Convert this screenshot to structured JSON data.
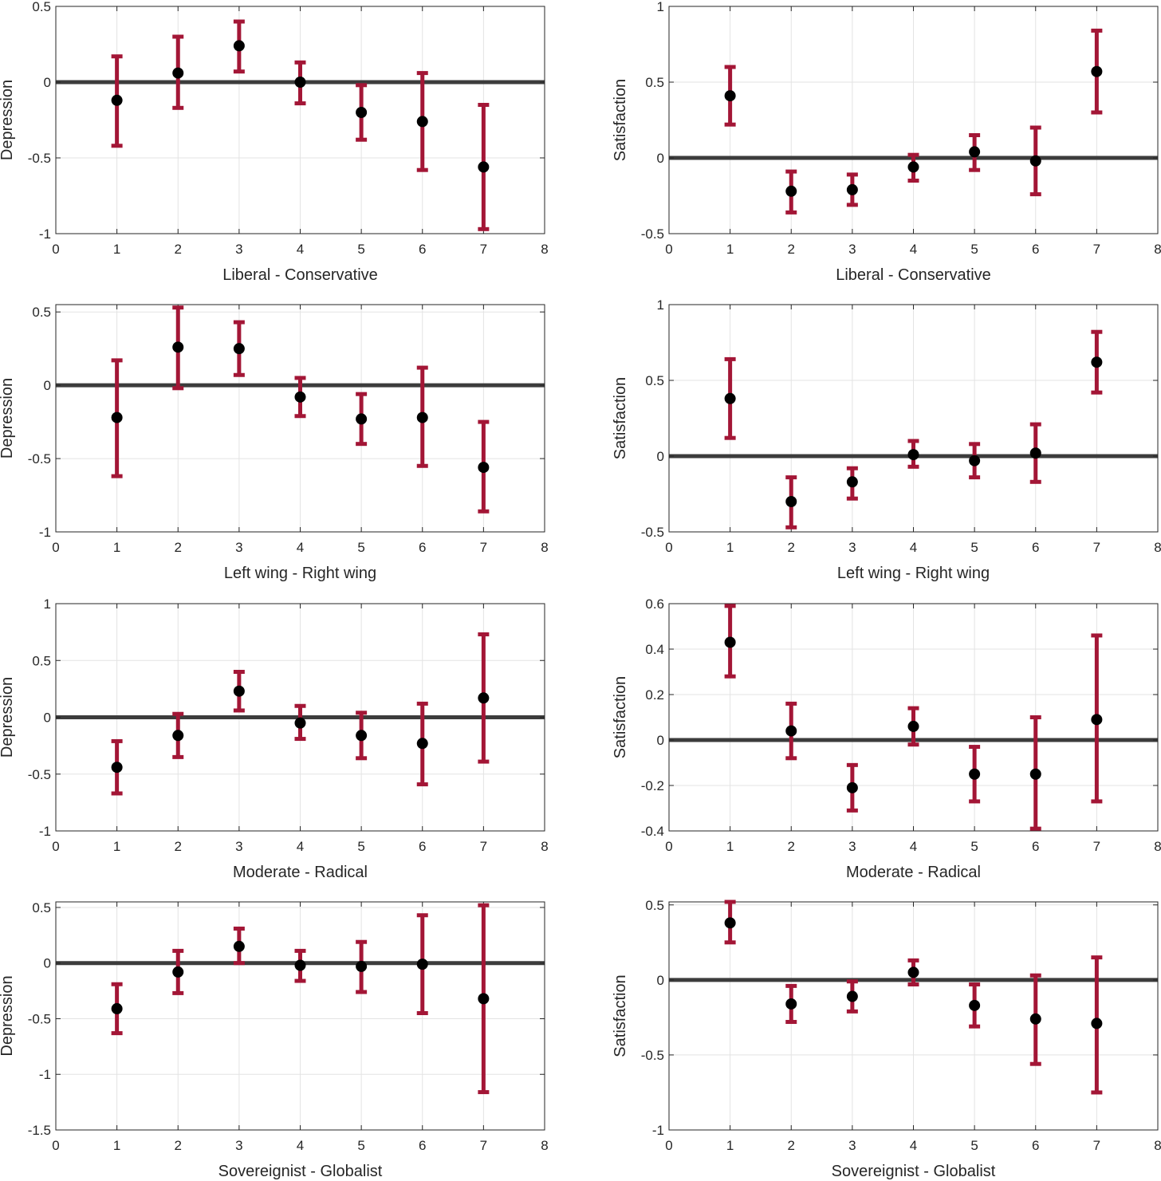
{
  "colors": {
    "error_bar": "#a31636",
    "point": "#000000",
    "zero_line": "#3c3c3c"
  },
  "chart_data": [
    {
      "type": "scatter",
      "xlabel": "Liberal - Conservative",
      "ylabel": "Depression",
      "xlim": [
        0,
        8
      ],
      "ylim": [
        -1,
        0.5
      ],
      "xticks": [
        0,
        1,
        2,
        3,
        4,
        5,
        6,
        7,
        8
      ],
      "yticks": [
        -1,
        -0.5,
        0,
        0.5
      ],
      "ytick_labels": [
        "-1",
        "-0.5",
        "0",
        "0.5"
      ],
      "grid": true,
      "reference_line_y": 0,
      "x": [
        1,
        2,
        3,
        4,
        5,
        6,
        7
      ],
      "y": [
        -0.12,
        0.06,
        0.24,
        0.0,
        -0.2,
        -0.26,
        -0.56
      ],
      "lower": [
        -0.42,
        -0.17,
        0.07,
        -0.14,
        -0.38,
        -0.58,
        -0.97
      ],
      "upper": [
        0.17,
        0.3,
        0.4,
        0.13,
        -0.02,
        0.06,
        -0.15
      ]
    },
    {
      "type": "scatter",
      "xlabel": "Liberal - Conservative",
      "ylabel": "Satisfaction",
      "xlim": [
        0,
        8
      ],
      "ylim": [
        -0.5,
        1
      ],
      "xticks": [
        0,
        1,
        2,
        3,
        4,
        5,
        6,
        7,
        8
      ],
      "yticks": [
        -0.5,
        0,
        0.5,
        1
      ],
      "ytick_labels": [
        "-0.5",
        "0",
        "0.5",
        "1"
      ],
      "grid": true,
      "reference_line_y": 0,
      "x": [
        1,
        2,
        3,
        4,
        5,
        6,
        7
      ],
      "y": [
        0.41,
        -0.22,
        -0.21,
        -0.06,
        0.04,
        -0.02,
        0.57
      ],
      "lower": [
        0.22,
        -0.36,
        -0.31,
        -0.15,
        -0.08,
        -0.24,
        0.3
      ],
      "upper": [
        0.6,
        -0.09,
        -0.11,
        0.02,
        0.15,
        0.2,
        0.84
      ]
    },
    {
      "type": "scatter",
      "xlabel": "Left wing - Right wing",
      "ylabel": "Depression",
      "xlim": [
        0,
        8
      ],
      "ylim": [
        -1,
        0.55
      ],
      "xticks": [
        0,
        1,
        2,
        3,
        4,
        5,
        6,
        7,
        8
      ],
      "yticks": [
        -1,
        -0.5,
        0,
        0.5
      ],
      "ytick_labels": [
        "-1",
        "-0.5",
        "0",
        "0.5"
      ],
      "grid": true,
      "reference_line_y": 0,
      "x": [
        1,
        2,
        3,
        4,
        5,
        6,
        7
      ],
      "y": [
        -0.22,
        0.26,
        0.25,
        -0.08,
        -0.23,
        -0.22,
        -0.56
      ],
      "lower": [
        -0.62,
        -0.02,
        0.07,
        -0.21,
        -0.4,
        -0.55,
        -0.86
      ],
      "upper": [
        0.17,
        0.53,
        0.43,
        0.05,
        -0.06,
        0.12,
        -0.25
      ]
    },
    {
      "type": "scatter",
      "xlabel": "Left wing - Right wing",
      "ylabel": "Satisfaction",
      "xlim": [
        0,
        8
      ],
      "ylim": [
        -0.5,
        1
      ],
      "xticks": [
        0,
        1,
        2,
        3,
        4,
        5,
        6,
        7,
        8
      ],
      "yticks": [
        -0.5,
        0,
        0.5,
        1
      ],
      "ytick_labels": [
        "-0.5",
        "0",
        "0.5",
        "1"
      ],
      "grid": true,
      "reference_line_y": 0,
      "x": [
        1,
        2,
        3,
        4,
        5,
        6,
        7
      ],
      "y": [
        0.38,
        -0.3,
        -0.17,
        0.01,
        -0.03,
        0.02,
        0.62
      ],
      "lower": [
        0.12,
        -0.47,
        -0.28,
        -0.07,
        -0.14,
        -0.17,
        0.42
      ],
      "upper": [
        0.64,
        -0.14,
        -0.08,
        0.1,
        0.08,
        0.21,
        0.82
      ]
    },
    {
      "type": "scatter",
      "xlabel": "Moderate - Radical",
      "ylabel": "Depression",
      "xlim": [
        0,
        8
      ],
      "ylim": [
        -1,
        1
      ],
      "xticks": [
        0,
        1,
        2,
        3,
        4,
        5,
        6,
        7,
        8
      ],
      "yticks": [
        -1,
        -0.5,
        0,
        0.5,
        1
      ],
      "ytick_labels": [
        "-1",
        "-0.5",
        "0",
        "0.5",
        "1"
      ],
      "grid": true,
      "reference_line_y": 0,
      "x": [
        1,
        2,
        3,
        4,
        5,
        6,
        7
      ],
      "y": [
        -0.44,
        -0.16,
        0.23,
        -0.05,
        -0.16,
        -0.23,
        0.17
      ],
      "lower": [
        -0.67,
        -0.35,
        0.06,
        -0.19,
        -0.36,
        -0.59,
        -0.39
      ],
      "upper": [
        -0.21,
        0.03,
        0.4,
        0.1,
        0.04,
        0.12,
        0.73
      ]
    },
    {
      "type": "scatter",
      "xlabel": "Moderate - Radical",
      "ylabel": "Satisfaction",
      "xlim": [
        0,
        8
      ],
      "ylim": [
        -0.4,
        0.6
      ],
      "xticks": [
        0,
        1,
        2,
        3,
        4,
        5,
        6,
        7,
        8
      ],
      "yticks": [
        -0.4,
        -0.2,
        0,
        0.2,
        0.4,
        0.6
      ],
      "ytick_labels": [
        "-0.4",
        "-0.2",
        "0",
        "0.2",
        "0.4",
        "0.6"
      ],
      "grid": true,
      "reference_line_y": 0,
      "x": [
        1,
        2,
        3,
        4,
        5,
        6,
        7
      ],
      "y": [
        0.43,
        0.04,
        -0.21,
        0.06,
        -0.15,
        -0.15,
        0.09
      ],
      "lower": [
        0.28,
        -0.08,
        -0.31,
        -0.02,
        -0.27,
        -0.39,
        -0.27
      ],
      "upper": [
        0.59,
        0.16,
        -0.11,
        0.14,
        -0.03,
        0.1,
        0.46
      ]
    },
    {
      "type": "scatter",
      "xlabel": "Sovereignist - Globalist",
      "ylabel": "Depression",
      "xlim": [
        0,
        8
      ],
      "ylim": [
        -1.5,
        0.55
      ],
      "xticks": [
        0,
        1,
        2,
        3,
        4,
        5,
        6,
        7,
        8
      ],
      "yticks": [
        -1.5,
        -1,
        -0.5,
        0,
        0.5
      ],
      "ytick_labels": [
        "-1.5",
        "-1",
        "-0.5",
        "0",
        "0.5"
      ],
      "grid": true,
      "reference_line_y": 0,
      "x": [
        1,
        2,
        3,
        4,
        5,
        6,
        7
      ],
      "y": [
        -0.41,
        -0.08,
        0.15,
        -0.02,
        -0.03,
        -0.01,
        -0.32
      ],
      "lower": [
        -0.63,
        -0.27,
        0.0,
        -0.16,
        -0.26,
        -0.45,
        -1.16
      ],
      "upper": [
        -0.19,
        0.11,
        0.31,
        0.11,
        0.19,
        0.43,
        0.52
      ]
    },
    {
      "type": "scatter",
      "xlabel": "Sovereignist - Globalist",
      "ylabel": "Satisfaction",
      "xlim": [
        0,
        8
      ],
      "ylim": [
        -1,
        0.52
      ],
      "xticks": [
        0,
        1,
        2,
        3,
        4,
        5,
        6,
        7,
        8
      ],
      "yticks": [
        -1,
        -0.5,
        0,
        0.5
      ],
      "ytick_labels": [
        "-1",
        "-0.5",
        "0",
        "0.5"
      ],
      "grid": true,
      "reference_line_y": 0,
      "x": [
        1,
        2,
        3,
        4,
        5,
        6,
        7
      ],
      "y": [
        0.38,
        -0.16,
        -0.11,
        0.05,
        -0.17,
        -0.26,
        -0.29
      ],
      "lower": [
        0.25,
        -0.28,
        -0.21,
        -0.03,
        -0.31,
        -0.56,
        -0.75
      ],
      "upper": [
        0.52,
        -0.04,
        -0.01,
        0.13,
        -0.03,
        0.03,
        0.15
      ]
    }
  ]
}
